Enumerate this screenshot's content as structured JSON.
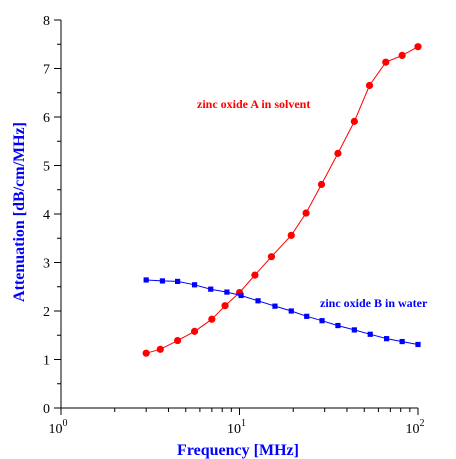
{
  "chart_data": {
    "type": "line",
    "x_scale": "log",
    "xlabel": "Frequency [MHz]",
    "ylabel": "Attenuation [dB/cm/MHz]",
    "xlim": [
      1,
      100
    ],
    "ylim": [
      0,
      8
    ],
    "x_ticks": [
      {
        "value": 1,
        "base": "10",
        "exp": "0"
      },
      {
        "value": 10,
        "base": "10",
        "exp": "1"
      },
      {
        "value": 100,
        "base": "10",
        "exp": "2"
      }
    ],
    "y_ticks": [
      0,
      1,
      2,
      3,
      4,
      5,
      6,
      7,
      8
    ],
    "grid": false,
    "series": [
      {
        "name": "zinc oxide A in solvent",
        "color": "#ff0000",
        "marker": "circle",
        "x": [
          3.0,
          3.6,
          4.5,
          5.6,
          7.0,
          8.3,
          10.0,
          12.2,
          15.1,
          19.5,
          23.6,
          28.8,
          35.6,
          44.0,
          53.5,
          66.0,
          81.5,
          100.0
        ],
        "y": [
          1.13,
          1.21,
          1.39,
          1.58,
          1.83,
          2.11,
          2.38,
          2.74,
          3.12,
          3.56,
          4.02,
          4.61,
          5.25,
          5.91,
          6.65,
          7.13,
          7.27,
          7.45
        ]
      },
      {
        "name": "zinc oxide B in water",
        "color": "#0000ff",
        "marker": "square",
        "x": [
          3.0,
          3.7,
          4.5,
          5.6,
          6.9,
          8.5,
          10.2,
          12.7,
          15.8,
          19.5,
          23.8,
          29.0,
          35.6,
          44.0,
          54.0,
          66.7,
          81.5,
          100.0
        ],
        "y": [
          2.64,
          2.62,
          2.61,
          2.54,
          2.45,
          2.39,
          2.32,
          2.21,
          2.1,
          2.0,
          1.89,
          1.8,
          1.7,
          1.61,
          1.52,
          1.43,
          1.37,
          1.31
        ]
      }
    ]
  }
}
